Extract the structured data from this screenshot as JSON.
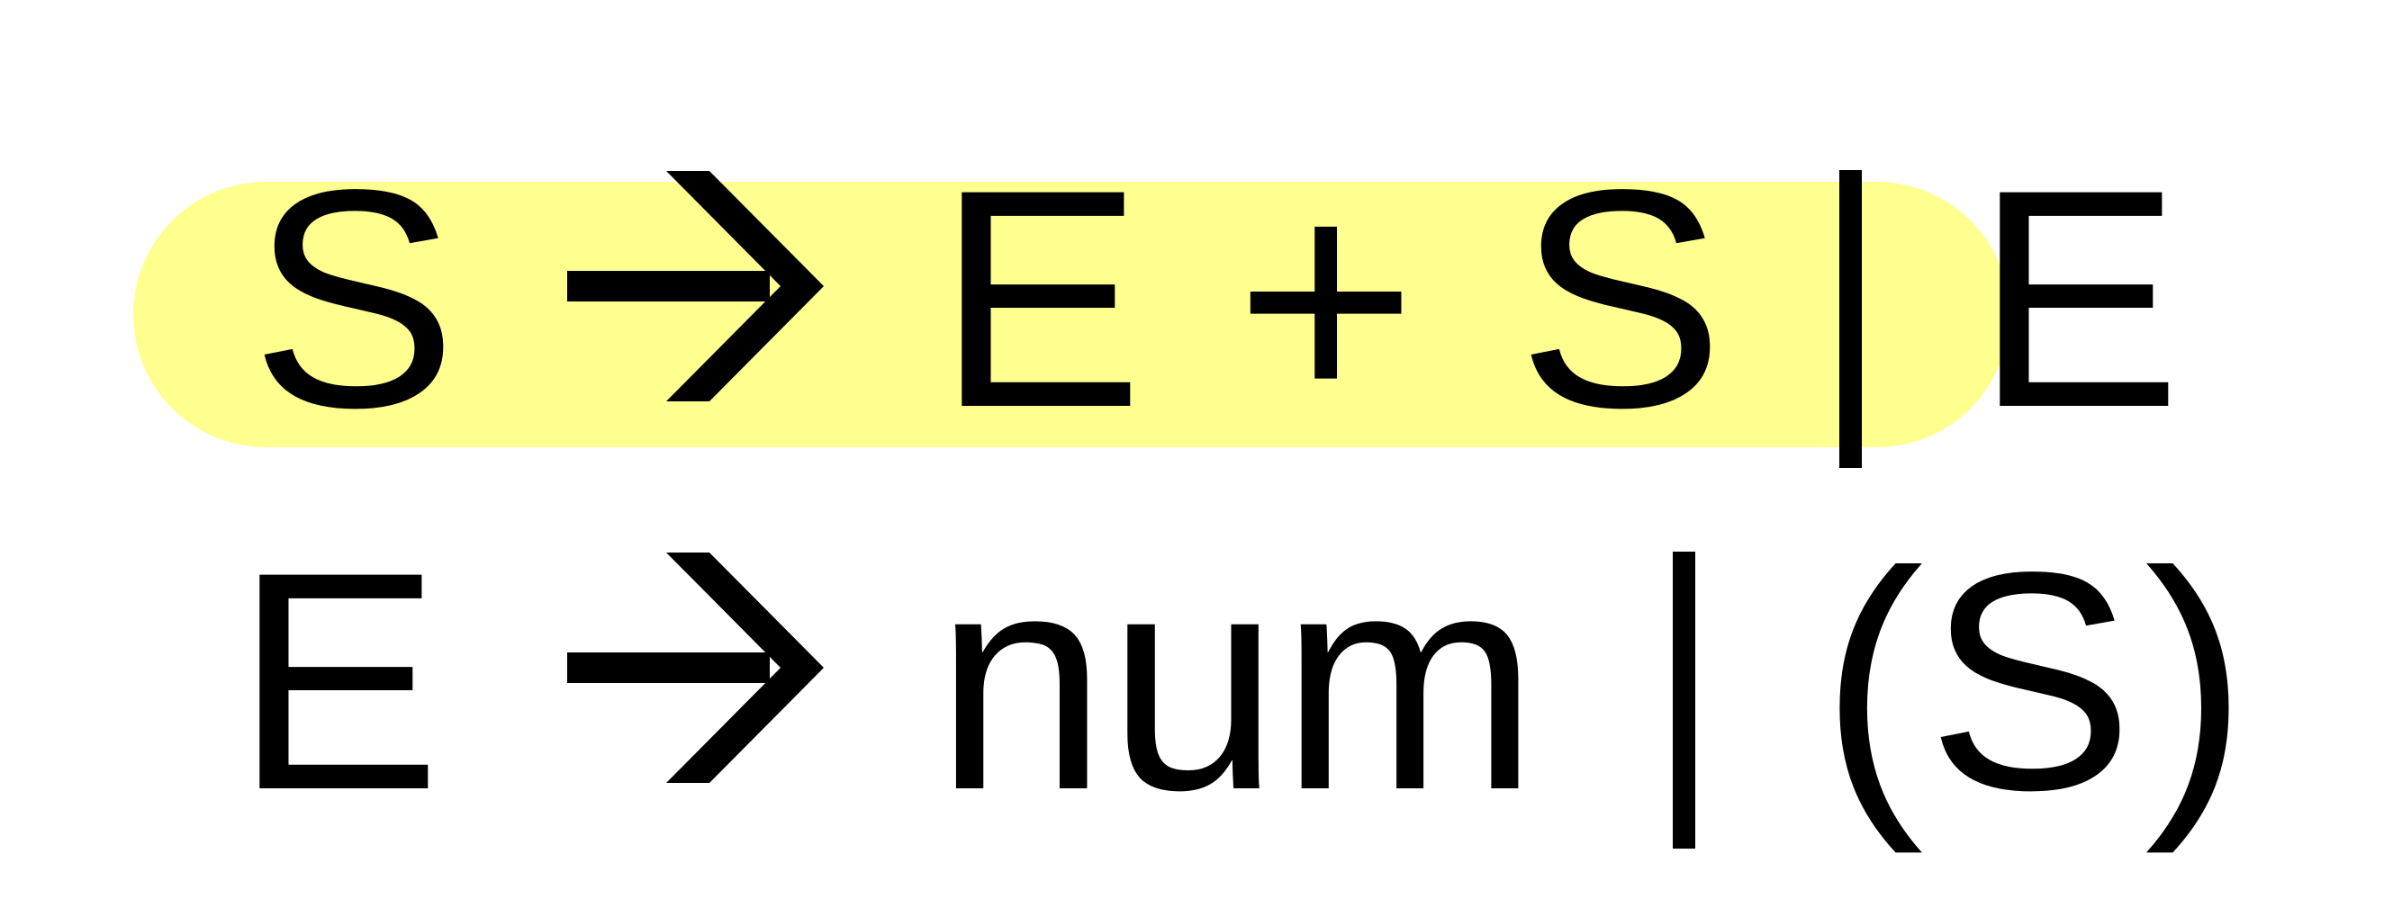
{
  "colors": {
    "highlight": "#ffff8f",
    "text": "#000000"
  },
  "rules": [
    {
      "lhs": "S",
      "arrow_icon": "right-arrow-icon",
      "alt1": [
        "E",
        "+",
        "S"
      ],
      "separator": "|",
      "alt2": [
        "E"
      ],
      "highlighted": true
    },
    {
      "lhs": "E",
      "arrow_icon": "right-arrow-icon",
      "alt1": [
        "num"
      ],
      "separator": "|",
      "alt2": [
        "(",
        "S",
        ")"
      ],
      "highlighted": false
    }
  ]
}
